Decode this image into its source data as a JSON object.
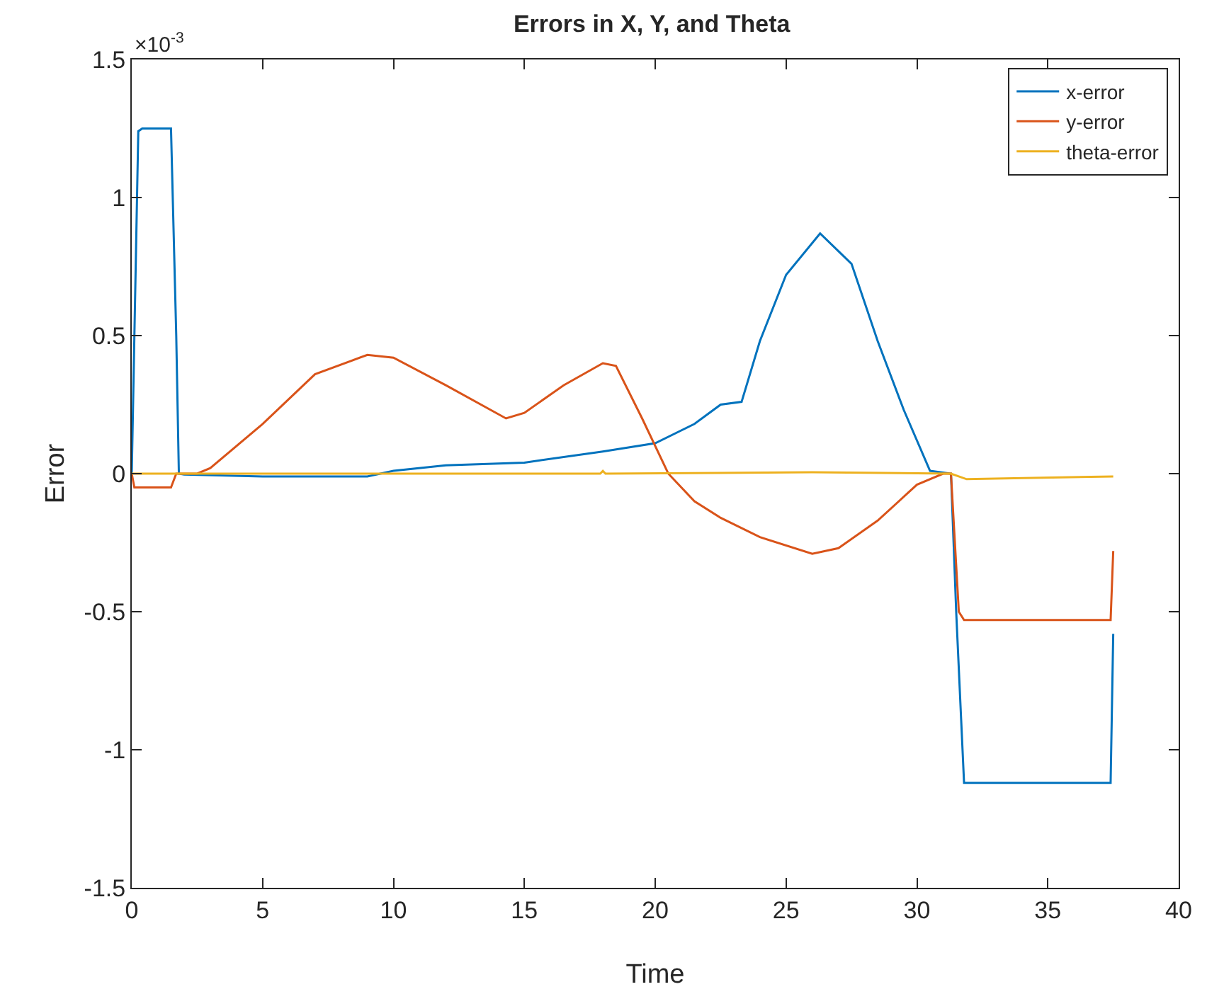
{
  "chart_data": {
    "type": "line",
    "title": "Errors in X, Y, and Theta",
    "xlabel": "Time",
    "ylabel": "Error",
    "annotations": [
      "×10$^{-3}$"
    ],
    "xlim": [
      0,
      40
    ],
    "xticks": [
      0,
      5,
      10,
      15,
      20,
      25,
      30,
      35,
      40
    ],
    "ylim": [
      -1.5,
      1.5
    ],
    "yticks": [
      -1.5,
      -1,
      -0.5,
      0,
      0.5,
      1,
      1.5
    ],
    "grid": false,
    "legend": "top right",
    "line_style": "solid",
    "marker": "none",
    "series": [
      {
        "name": "x-error",
        "color": "#0072bd",
        "x": [
          0,
          0.25,
          0.4,
          1.5,
          1.7,
          1.8,
          2,
          5,
          9,
          10,
          12,
          15,
          18,
          20,
          21.5,
          22.5,
          23.3,
          24,
          25,
          26.3,
          27.5,
          28.5,
          29.5,
          30.5,
          31.3,
          31.5,
          31.8,
          37.4,
          37.5
        ],
        "values": [
          0,
          1.24,
          1.25,
          1.25,
          0.5,
          0,
          -0.003,
          -0.01,
          -0.01,
          0.01,
          0.03,
          0.04,
          0.08,
          0.11,
          0.18,
          0.25,
          0.26,
          0.48,
          0.72,
          0.87,
          0.76,
          0.48,
          0.23,
          0.01,
          0,
          -0.5,
          -1.12,
          -1.12,
          -0.58
        ]
      },
      {
        "name": "y-error",
        "color": "#d95319",
        "x": [
          0,
          0.1,
          1.5,
          1.7,
          2.5,
          3,
          5,
          7,
          9,
          10,
          12,
          14.3,
          15,
          16.5,
          18,
          18.5,
          19.5,
          20.5,
          21.5,
          22.5,
          24,
          26,
          27,
          28.5,
          30,
          31,
          31.3,
          31.6,
          31.8,
          37.4,
          37.5
        ],
        "values": [
          0,
          -0.05,
          -0.05,
          0,
          0,
          0.02,
          0.18,
          0.36,
          0.43,
          0.42,
          0.32,
          0.2,
          0.22,
          0.32,
          0.4,
          0.39,
          0.2,
          0,
          -0.1,
          -0.16,
          -0.23,
          -0.29,
          -0.27,
          -0.17,
          -0.04,
          0,
          0,
          -0.5,
          -0.53,
          -0.53,
          -0.28
        ]
      },
      {
        "name": "theta-error",
        "color": "#edb120",
        "x": [
          0,
          17.9,
          18,
          18.1,
          26,
          31.3,
          31.9,
          37.5
        ],
        "values": [
          0,
          0,
          0.01,
          0,
          0.005,
          0,
          -0.02,
          -0.01
        ]
      }
    ]
  }
}
